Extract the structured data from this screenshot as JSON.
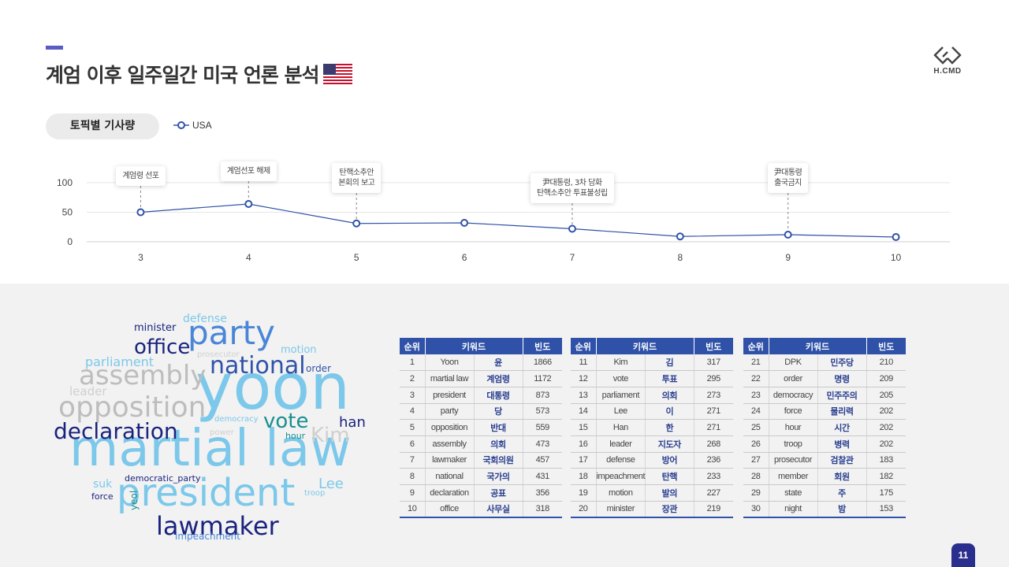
{
  "header": {
    "title": "계엄 이후 일주일간 미국 언론 분석",
    "logo_text": "H.CMD"
  },
  "topic_pill": "토픽별 기사량",
  "chart_data": {
    "type": "line",
    "x": [
      3,
      4,
      5,
      6,
      7,
      8,
      9,
      10
    ],
    "series": [
      {
        "name": "USA",
        "values": [
          50,
          64,
          31,
          32,
          22,
          9,
          12,
          8
        ],
        "color": "#2f52a8"
      }
    ],
    "ylim": [
      0,
      110
    ],
    "yticks": [
      0,
      50,
      100
    ],
    "annotations": [
      {
        "x": 3,
        "text": "계엄령 선포"
      },
      {
        "x": 4,
        "text": "계엄선포 해제"
      },
      {
        "x": 5,
        "text": "탄핵소추안\n본회의 보고"
      },
      {
        "x": 7,
        "text": "尹대통령, 3차 담화\n탄핵소추안 투표불성립"
      },
      {
        "x": 9,
        "text": "尹대통령\n출국금지"
      }
    ],
    "grid": true,
    "legend": "top-left"
  },
  "wordcloud": [
    {
      "text": "martial law",
      "color": "#7cc8ea",
      "size": 64
    },
    {
      "text": "yoon",
      "color": "#7cc8ea",
      "size": 80
    },
    {
      "text": "president",
      "color": "#7cc8ea",
      "size": 48
    },
    {
      "text": "party",
      "color": "#4a86d8",
      "size": 42
    },
    {
      "text": "opposition",
      "color": "#bdbdbd",
      "size": 36
    },
    {
      "text": "assembly",
      "color": "#bdbdbd",
      "size": 34
    },
    {
      "text": "national",
      "color": "#2f52a8",
      "size": 30
    },
    {
      "text": "declaration",
      "color": "#1a237e",
      "size": 28
    },
    {
      "text": "lawmaker",
      "color": "#1a237e",
      "size": 32
    },
    {
      "text": "office",
      "color": "#1a237e",
      "size": 26
    },
    {
      "text": "vote",
      "color": "#1a8f8f",
      "size": 26
    },
    {
      "text": "Kim",
      "color": "#cfcfcf",
      "size": 26
    },
    {
      "text": "han",
      "color": "#1a237e",
      "size": 18
    },
    {
      "text": "Lee",
      "color": "#7cc8ea",
      "size": 18
    },
    {
      "text": "parliament",
      "color": "#7cc8ea",
      "size": 16
    },
    {
      "text": "leader",
      "color": "#cfcfcf",
      "size": 15
    },
    {
      "text": "minister",
      "color": "#1a237e",
      "size": 13
    },
    {
      "text": "defense",
      "color": "#7cc8ea",
      "size": 14
    },
    {
      "text": "motion",
      "color": "#7cc8ea",
      "size": 13
    },
    {
      "text": "order",
      "color": "#2f52a8",
      "size": 12
    },
    {
      "text": "prosecutor",
      "color": "#cfcfcf",
      "size": 10
    },
    {
      "text": "democracy",
      "color": "#7cc8ea",
      "size": 10
    },
    {
      "text": "power",
      "color": "#cfcfcf",
      "size": 10
    },
    {
      "text": "hour",
      "color": "#1a8f8f",
      "size": 11
    },
    {
      "text": "suk",
      "color": "#7cc8ea",
      "size": 14
    },
    {
      "text": "democratic_party",
      "color": "#1a237e",
      "size": 11
    },
    {
      "text": "force",
      "color": "#1a237e",
      "size": 11
    },
    {
      "text": "troop",
      "color": "#7cc8ea",
      "size": 10
    },
    {
      "text": "yeol",
      "color": "#1a8f8f",
      "size": 12
    },
    {
      "text": "impeachment",
      "color": "#4a86d8",
      "size": 12
    }
  ],
  "tables": {
    "headers": [
      "순위",
      "키워드",
      "빈도"
    ],
    "rows": [
      [
        [
          "1",
          "Yoon",
          "윤",
          "1866"
        ],
        [
          "2",
          "martial law",
          "계엄령",
          "1172"
        ],
        [
          "3",
          "president",
          "대통령",
          "873"
        ],
        [
          "4",
          "party",
          "당",
          "573"
        ],
        [
          "5",
          "opposition",
          "반대",
          "559"
        ],
        [
          "6",
          "assembly",
          "의회",
          "473"
        ],
        [
          "7",
          "lawmaker",
          "국회의원",
          "457"
        ],
        [
          "8",
          "national",
          "국가의",
          "431"
        ],
        [
          "9",
          "declaration",
          "공표",
          "356"
        ],
        [
          "10",
          "office",
          "사무실",
          "318"
        ]
      ],
      [
        [
          "11",
          "Kim",
          "김",
          "317"
        ],
        [
          "12",
          "vote",
          "투표",
          "295"
        ],
        [
          "13",
          "parliament",
          "의회",
          "273"
        ],
        [
          "14",
          "Lee",
          "이",
          "271"
        ],
        [
          "15",
          "Han",
          "한",
          "271"
        ],
        [
          "16",
          "leader",
          "지도자",
          "268"
        ],
        [
          "17",
          "defense",
          "방어",
          "236"
        ],
        [
          "18",
          "impeachment",
          "탄핵",
          "233"
        ],
        [
          "19",
          "motion",
          "발의",
          "227"
        ],
        [
          "20",
          "minister",
          "장관",
          "219"
        ]
      ],
      [
        [
          "21",
          "DPK",
          "민주당",
          "210"
        ],
        [
          "22",
          "order",
          "명령",
          "209"
        ],
        [
          "23",
          "democracy",
          "민주주의",
          "205"
        ],
        [
          "24",
          "force",
          "물리력",
          "202"
        ],
        [
          "25",
          "hour",
          "시간",
          "202"
        ],
        [
          "26",
          "troop",
          "병력",
          "202"
        ],
        [
          "27",
          "prosecutor",
          "검찰관",
          "183"
        ],
        [
          "28",
          "member",
          "회원",
          "182"
        ],
        [
          "29",
          "state",
          "주",
          "175"
        ],
        [
          "30",
          "night",
          "밤",
          "153"
        ]
      ]
    ]
  },
  "page_number": "11"
}
